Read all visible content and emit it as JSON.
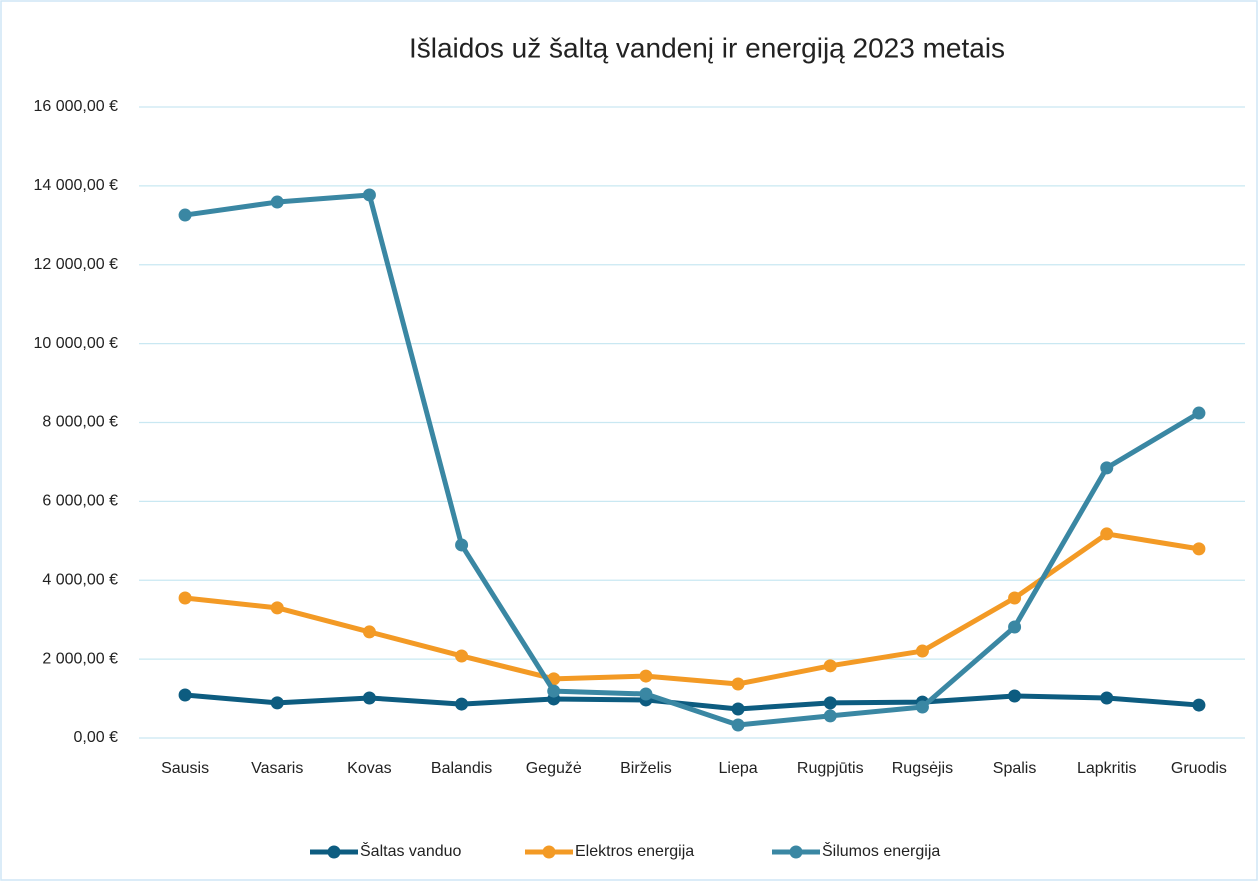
{
  "chart_data": {
    "type": "line",
    "title": "Išlaidos už šaltą vandenį ir energiją 2023 metais",
    "categories": [
      "Sausis",
      "Vasaris",
      "Kovas",
      "Balandis",
      "Gegužė",
      "Birželis",
      "Liepa",
      "Rugpjūtis",
      "Rugsėjis",
      "Spalis",
      "Lapkritis",
      "Gruodis"
    ],
    "series": [
      {
        "name": "Šaltas vanduo",
        "color": "#0d5c80",
        "values": [
          1090,
          890,
          1015,
          860,
          990,
          965,
          735,
          890,
          910,
          1065,
          1015,
          835
        ]
      },
      {
        "name": "Elektros energija",
        "color": "#f39a25",
        "values": [
          3550,
          3300,
          2690,
          2080,
          1500,
          1570,
          1370,
          1830,
          2205,
          3550,
          5175,
          4795
        ]
      },
      {
        "name": "Šilumos energija",
        "color": "#3a87a3",
        "values": [
          13260,
          13590,
          13770,
          4895,
          1190,
          1115,
          330,
          560,
          785,
          2815,
          6850,
          8240
        ]
      }
    ],
    "ylim": [
      0,
      16000
    ],
    "yticks": [
      {
        "value": 0,
        "label": "0,00 €"
      },
      {
        "value": 2000,
        "label": "2 000,00 €"
      },
      {
        "value": 4000,
        "label": "4 000,00 €"
      },
      {
        "value": 6000,
        "label": "6 000,00 €"
      },
      {
        "value": 8000,
        "label": "8 000,00 €"
      },
      {
        "value": 10000,
        "label": "10 000,00 €"
      },
      {
        "value": 12000,
        "label": "12 000,00 €"
      },
      {
        "value": 14000,
        "label": "14 000,00 €"
      },
      {
        "value": 16000,
        "label": "16 000,00 €"
      }
    ],
    "grid": true,
    "legend": "bottom"
  }
}
